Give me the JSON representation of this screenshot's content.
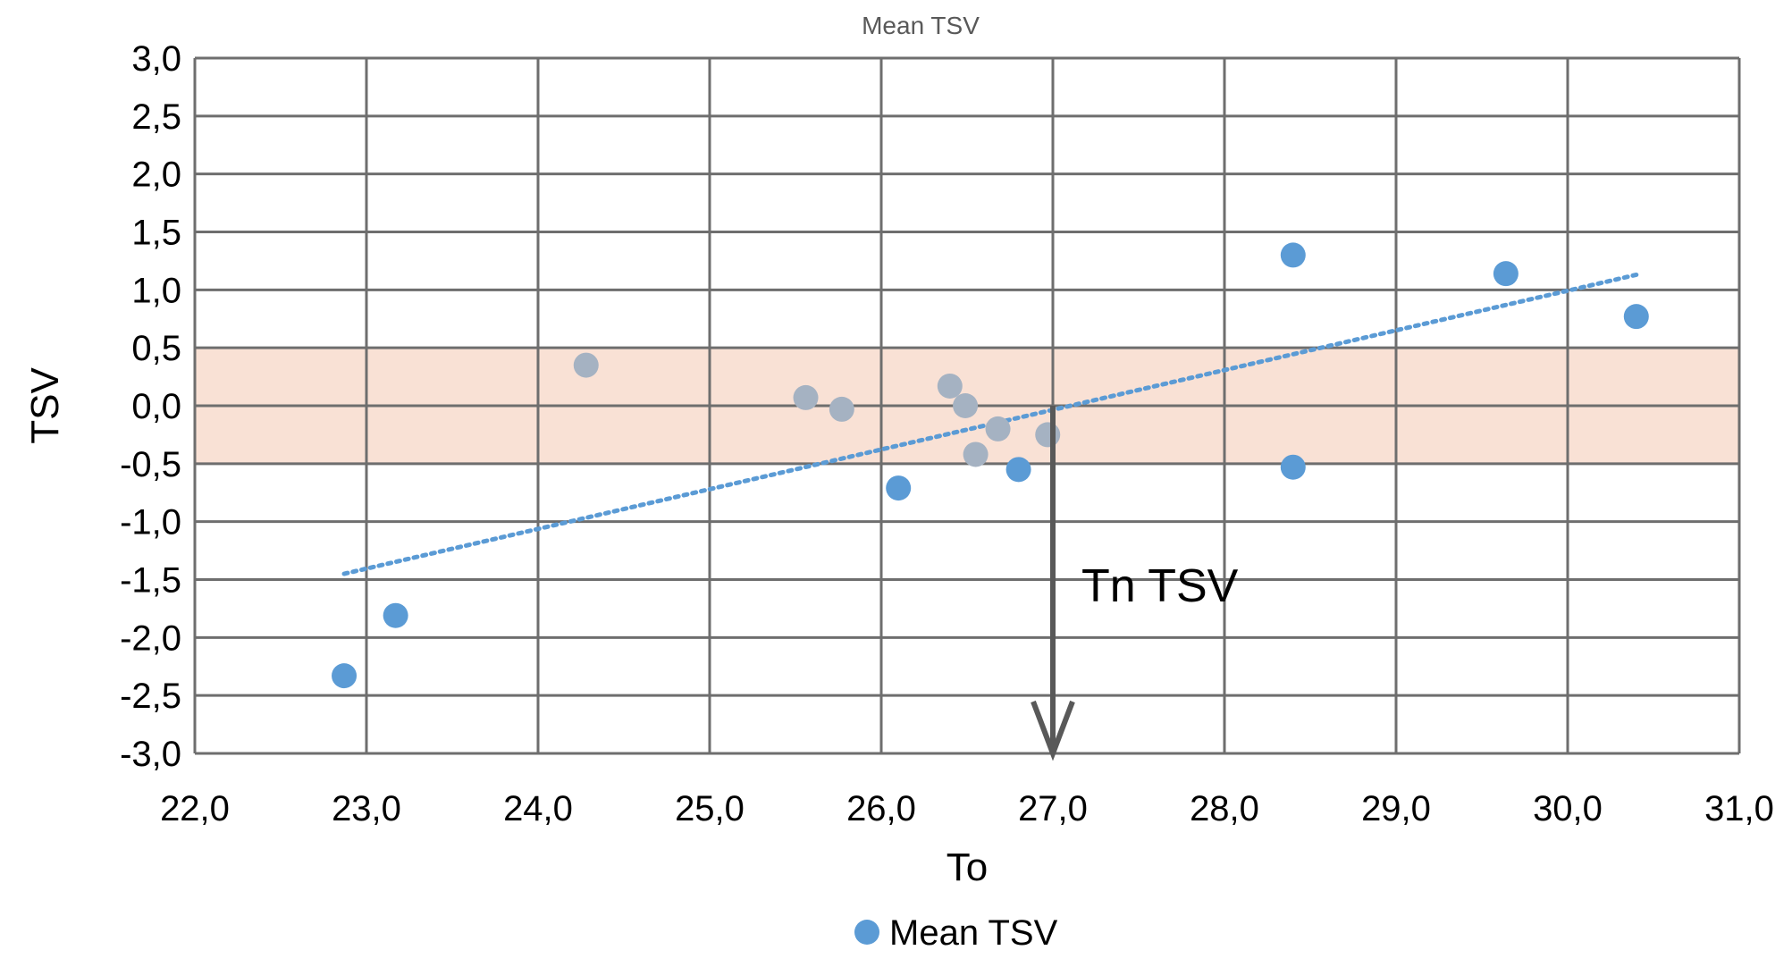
{
  "chart_data": {
    "type": "scatter",
    "title": "Mean TSV",
    "xlabel": "To",
    "ylabel": "TSV",
    "xlim": [
      22.0,
      31.0
    ],
    "ylim": [
      -3.0,
      3.0
    ],
    "x_ticks": [
      "22,0",
      "23,0",
      "24,0",
      "25,0",
      "26,0",
      "27,0",
      "28,0",
      "29,0",
      "30,0",
      "31,0"
    ],
    "y_ticks": [
      "3,0",
      "2,5",
      "2,0",
      "1,5",
      "1,0",
      "0,5",
      "0,0",
      "-0,5",
      "-1,0",
      "-1,5",
      "-2,0",
      "-2,5",
      "-3,0"
    ],
    "grid": true,
    "legend_position": "bottom",
    "comfort_band": {
      "ymin": -0.5,
      "ymax": 0.5,
      "color": "#f9e1d5"
    },
    "series": [
      {
        "name": "Mean TSV",
        "color": "#5b9bd5",
        "points": [
          {
            "x": 22.87,
            "y": -2.33
          },
          {
            "x": 23.17,
            "y": -1.81
          },
          {
            "x": 24.28,
            "y": 0.35
          },
          {
            "x": 25.56,
            "y": 0.07
          },
          {
            "x": 25.77,
            "y": -0.03
          },
          {
            "x": 26.1,
            "y": -0.71
          },
          {
            "x": 26.4,
            "y": 0.17
          },
          {
            "x": 26.49,
            "y": 0.0
          },
          {
            "x": 26.55,
            "y": -0.42
          },
          {
            "x": 26.68,
            "y": -0.2
          },
          {
            "x": 26.8,
            "y": -0.55
          },
          {
            "x": 26.97,
            "y": -0.25
          },
          {
            "x": 28.4,
            "y": 1.3
          },
          {
            "x": 28.4,
            "y": -0.53
          },
          {
            "x": 29.64,
            "y": 1.14
          },
          {
            "x": 30.4,
            "y": 0.77
          }
        ]
      }
    ],
    "muted_point_color": "#a5b2c2",
    "trendline": {
      "type": "linear",
      "x_start": 22.87,
      "y_start": -1.45,
      "x_end": 30.4,
      "y_end": 1.13,
      "color": "#5b9bd5",
      "style": "dotted"
    },
    "annotation": {
      "text": "Tn TSV",
      "arrow_x": 27.0,
      "arrow_from_y": 0.0,
      "arrow_to_y": -3.0,
      "color": "#595959"
    }
  }
}
